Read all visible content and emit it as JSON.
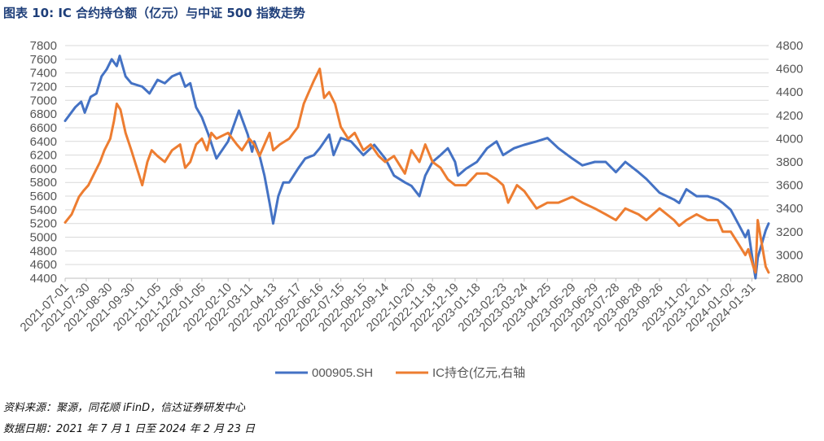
{
  "title": "图表 10:  IC 合约持仓额（亿元）与中证 500 指数走势",
  "notes": {
    "source": "资料来源：聚源，同花顺 iFinD，信达证券研发中心",
    "date_range": "数据日期：2021 年 7 月 1 日至 2024 年 2 月 23 日"
  },
  "colors": {
    "series1": "#4472C4",
    "series2": "#ED7D31",
    "grid": "#d9d9d9",
    "text": "#555555",
    "title": "#1f3f7a"
  },
  "chart_data": {
    "type": "line",
    "title": "图表 10:  IC 合约持仓额（亿元）与中证 500 指数走势",
    "legend_position": "bottom",
    "grid": true,
    "x_tick_labels": [
      "2021-07-01",
      "2021-07-30",
      "2021-08-30",
      "2021-09-30",
      "2021-11-05",
      "2021-12-06",
      "2022-01-05",
      "2022-02-10",
      "2022-03-11",
      "2022-04-13",
      "2022-05-17",
      "2022-06-16",
      "2022-07-15",
      "2022-08-15",
      "2022-09-14",
      "2022-10-20",
      "2022-11-18",
      "2022-12-19",
      "2023-01-18",
      "2023-02-23",
      "2023-03-24",
      "2023-04-25",
      "2023-05-29",
      "2023-06-29",
      "2023-07-28",
      "2023-08-28",
      "2023-09-26",
      "2023-11-02",
      "2023-12-01",
      "2024-01-02",
      "2024-01-31"
    ],
    "y_left": {
      "min": 4400,
      "max": 7800,
      "ticks": [
        4400,
        4600,
        4800,
        5000,
        5200,
        5400,
        5600,
        5800,
        6000,
        6200,
        6400,
        6600,
        6800,
        7000,
        7200,
        7400,
        7600,
        7800
      ]
    },
    "y_right": {
      "min": 2800,
      "max": 4800,
      "ticks": [
        2800,
        3000,
        3200,
        3400,
        3600,
        3800,
        4000,
        4200,
        4400,
        4600,
        4800
      ]
    },
    "series": [
      {
        "name": "000905.SH",
        "axis": "left",
        "x": [
          "2021-07-01",
          "2021-07-15",
          "2021-07-23",
          "2021-07-28",
          "2021-08-05",
          "2021-08-13",
          "2021-08-20",
          "2021-08-27",
          "2021-09-03",
          "2021-09-10",
          "2021-09-14",
          "2021-09-22",
          "2021-09-30",
          "2021-10-15",
          "2021-10-25",
          "2021-11-05",
          "2021-11-15",
          "2021-11-25",
          "2021-12-06",
          "2021-12-13",
          "2021-12-20",
          "2021-12-28",
          "2022-01-05",
          "2022-01-14",
          "2022-01-25",
          "2022-02-10",
          "2022-02-25",
          "2022-03-09",
          "2022-03-15",
          "2022-03-18",
          "2022-03-25",
          "2022-04-01",
          "2022-04-08",
          "2022-04-13",
          "2022-04-20",
          "2022-04-27",
          "2022-05-05",
          "2022-05-17",
          "2022-05-27",
          "2022-06-08",
          "2022-06-16",
          "2022-06-29",
          "2022-07-05",
          "2022-07-15",
          "2022-07-29",
          "2022-08-15",
          "2022-08-30",
          "2022-09-14",
          "2022-09-26",
          "2022-10-11",
          "2022-10-20",
          "2022-10-31",
          "2022-11-08",
          "2022-11-18",
          "2022-11-29",
          "2022-12-09",
          "2022-12-19",
          "2022-12-23",
          "2023-01-03",
          "2023-01-18",
          "2023-02-01",
          "2023-02-14",
          "2023-02-23",
          "2023-03-10",
          "2023-03-24",
          "2023-04-10",
          "2023-04-25",
          "2023-05-10",
          "2023-05-29",
          "2023-06-12",
          "2023-06-29",
          "2023-07-14",
          "2023-07-28",
          "2023-08-10",
          "2023-08-28",
          "2023-09-08",
          "2023-09-26",
          "2023-10-16",
          "2023-10-23",
          "2023-11-02",
          "2023-11-16",
          "2023-12-01",
          "2023-12-15",
          "2023-12-22",
          "2024-01-02",
          "2024-01-12",
          "2024-01-22",
          "2024-01-26",
          "2024-02-02",
          "2024-02-05",
          "2024-02-08",
          "2024-02-19",
          "2024-02-23"
        ],
        "values": [
          6700,
          6900,
          6980,
          6820,
          7050,
          7100,
          7350,
          7450,
          7600,
          7500,
          7650,
          7350,
          7250,
          7200,
          7100,
          7300,
          7250,
          7350,
          7400,
          7200,
          7250,
          6900,
          6750,
          6500,
          6150,
          6400,
          6850,
          6500,
          6250,
          6400,
          6200,
          5900,
          5500,
          5200,
          5600,
          5800,
          5800,
          6000,
          6150,
          6200,
          6300,
          6500,
          6200,
          6450,
          6400,
          6200,
          6350,
          6150,
          5900,
          5800,
          5750,
          5600,
          5900,
          6100,
          6200,
          6300,
          6100,
          5900,
          6000,
          6100,
          6300,
          6400,
          6200,
          6300,
          6350,
          6400,
          6450,
          6300,
          6150,
          6050,
          6100,
          6100,
          5950,
          6100,
          5950,
          5850,
          5650,
          5550,
          5500,
          5700,
          5600,
          5600,
          5550,
          5500,
          5400,
          5200,
          5000,
          5100,
          4600,
          4400,
          4700,
          5100,
          5200
        ]
      },
      {
        "name": "IC持仓(亿元,右轴",
        "axis": "right",
        "x": [
          "2021-07-01",
          "2021-07-10",
          "2021-07-20",
          "2021-07-26",
          "2021-08-02",
          "2021-08-10",
          "2021-08-18",
          "2021-08-24",
          "2021-09-01",
          "2021-09-06",
          "2021-09-10",
          "2021-09-15",
          "2021-09-22",
          "2021-09-30",
          "2021-10-15",
          "2021-10-22",
          "2021-10-28",
          "2021-11-05",
          "2021-11-15",
          "2021-11-25",
          "2021-12-06",
          "2021-12-13",
          "2021-12-20",
          "2021-12-28",
          "2022-01-05",
          "2022-01-12",
          "2022-01-18",
          "2022-01-25",
          "2022-02-10",
          "2022-02-22",
          "2022-03-01",
          "2022-03-11",
          "2022-03-18",
          "2022-03-25",
          "2022-04-01",
          "2022-04-08",
          "2022-04-13",
          "2022-04-22",
          "2022-05-05",
          "2022-05-17",
          "2022-05-25",
          "2022-06-01",
          "2022-06-08",
          "2022-06-16",
          "2022-06-22",
          "2022-06-29",
          "2022-07-07",
          "2022-07-15",
          "2022-07-25",
          "2022-08-03",
          "2022-08-15",
          "2022-08-25",
          "2022-09-05",
          "2022-09-14",
          "2022-09-26",
          "2022-10-11",
          "2022-10-20",
          "2022-10-31",
          "2022-11-08",
          "2022-11-18",
          "2022-11-29",
          "2022-12-09",
          "2022-12-19",
          "2023-01-03",
          "2023-01-18",
          "2023-02-01",
          "2023-02-14",
          "2023-02-23",
          "2023-03-02",
          "2023-03-14",
          "2023-03-24",
          "2023-04-10",
          "2023-04-25",
          "2023-05-10",
          "2023-05-29",
          "2023-06-12",
          "2023-06-29",
          "2023-07-14",
          "2023-07-28",
          "2023-08-10",
          "2023-08-28",
          "2023-09-08",
          "2023-09-26",
          "2023-10-16",
          "2023-10-23",
          "2023-11-02",
          "2023-11-16",
          "2023-12-01",
          "2023-12-15",
          "2023-12-22",
          "2024-01-02",
          "2024-01-12",
          "2024-01-22",
          "2024-01-26",
          "2024-02-02",
          "2024-02-05",
          "2024-02-08",
          "2024-02-19",
          "2024-02-23"
        ],
        "values": [
          3280,
          3350,
          3500,
          3550,
          3600,
          3700,
          3800,
          3900,
          4000,
          4150,
          4300,
          4250,
          4050,
          3900,
          3600,
          3800,
          3900,
          3850,
          3800,
          3900,
          3950,
          3750,
          3800,
          3950,
          4000,
          3900,
          4050,
          4000,
          4050,
          3950,
          3900,
          4000,
          3950,
          3850,
          3950,
          4050,
          3900,
          3950,
          4000,
          4100,
          4300,
          4400,
          4500,
          4600,
          4350,
          4400,
          4300,
          4100,
          4000,
          4050,
          3900,
          3950,
          3850,
          3800,
          3850,
          3700,
          3900,
          3800,
          3950,
          3800,
          3750,
          3650,
          3600,
          3600,
          3700,
          3700,
          3650,
          3600,
          3450,
          3600,
          3550,
          3400,
          3450,
          3450,
          3500,
          3450,
          3400,
          3350,
          3300,
          3400,
          3350,
          3300,
          3400,
          3300,
          3250,
          3300,
          3350,
          3300,
          3300,
          3200,
          3200,
          3100,
          3000,
          3050,
          2900,
          2850,
          3300,
          2900,
          2850
        ]
      }
    ],
    "legend": [
      "000905.SH",
      "IC持仓(亿元,右轴"
    ]
  }
}
